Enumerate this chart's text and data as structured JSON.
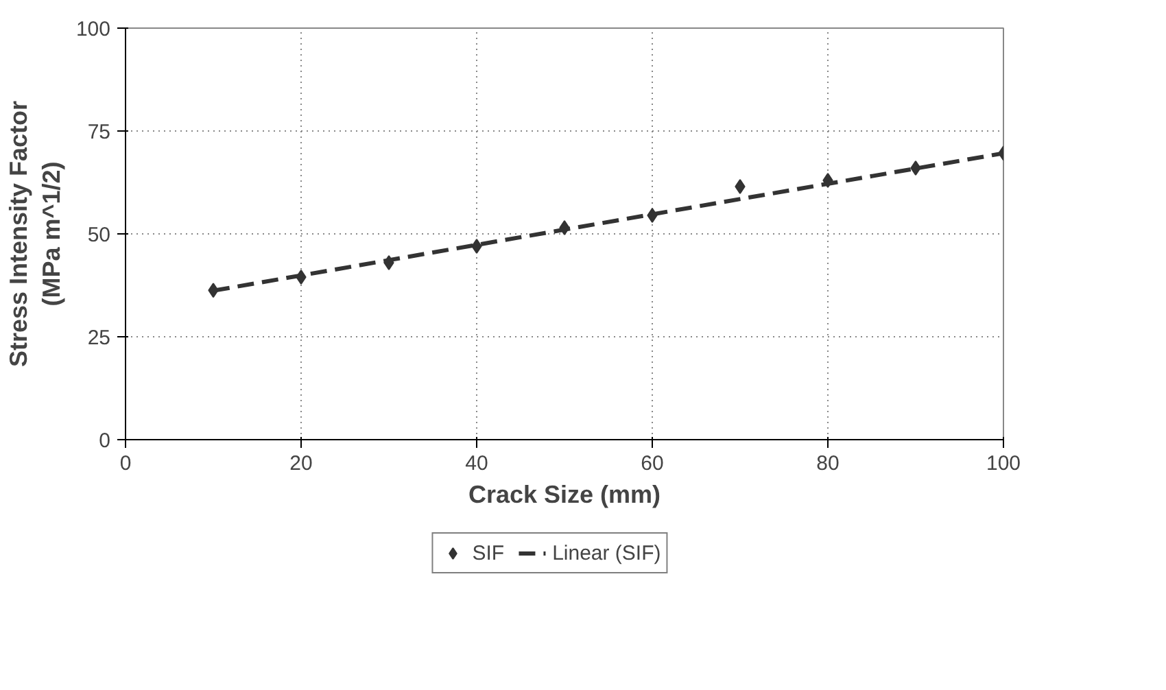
{
  "chart_data": {
    "type": "scatter",
    "xlabel": "Crack Size (mm)",
    "ylabel": "Stress Intensity Factor\n(MPa m^1/2)",
    "x": [
      10,
      20,
      30,
      40,
      50,
      60,
      70,
      80,
      90,
      100
    ],
    "series": [
      {
        "name": "SIF",
        "color": "#333333",
        "marker": "diamond",
        "values": [
          36.3,
          39.5,
          43,
          47,
          51.5,
          54.5,
          61.5,
          63,
          66,
          69.6
        ]
      },
      {
        "name": "Linear (SIF)",
        "type": "line",
        "color": "#333333",
        "line_style": "dashed",
        "x": [
          10,
          100
        ],
        "values": [
          36.2,
          69.6
        ]
      }
    ],
    "xlim": [
      0,
      100
    ],
    "ylim": [
      0,
      100
    ],
    "xticks": [
      0,
      20,
      40,
      60,
      80,
      100
    ],
    "yticks": [
      0,
      25,
      50,
      75,
      100
    ],
    "grid": true,
    "legend": "bottom"
  }
}
